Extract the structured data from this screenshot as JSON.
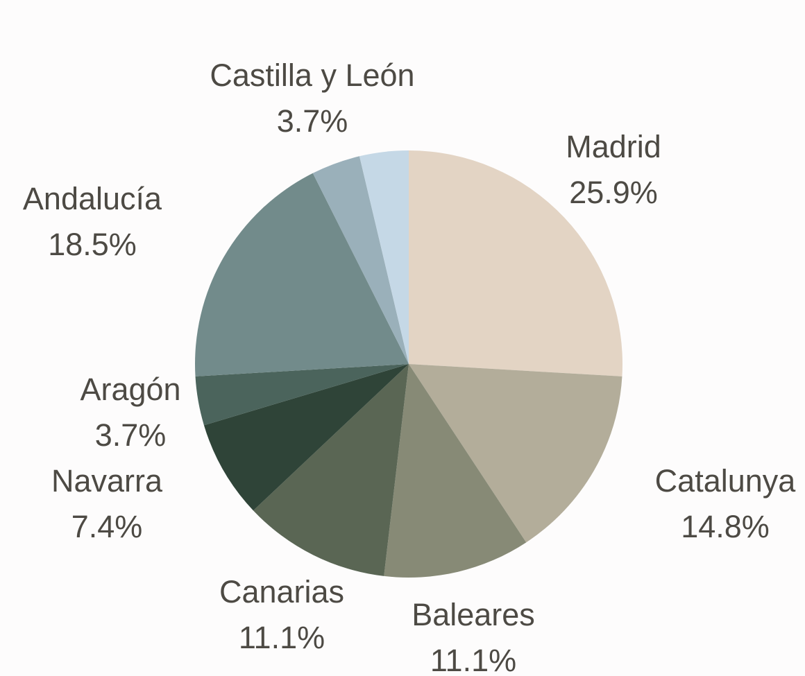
{
  "chart_data": {
    "type": "pie",
    "categories": [
      "Madrid",
      "Catalunya",
      "Baleares",
      "Canarias",
      "Navarra",
      "Aragón",
      "Andalucía",
      "Castilla y León",
      null
    ],
    "values": [
      25.9,
      14.8,
      11.1,
      11.1,
      7.4,
      3.7,
      18.5,
      3.7,
      3.7
    ],
    "value_labels": [
      "25.9%",
      "14.8%",
      "11.1%",
      "11.1%",
      "7.4%",
      "3.7%",
      "18.5%",
      "3.7%",
      null
    ],
    "colors": [
      "#e3d4c4",
      "#b3ad9a",
      "#878a76",
      "#5a6654",
      "#2f4438",
      "#4b645c",
      "#728b8b",
      "#9ab0ba",
      "#c5d8e6"
    ]
  }
}
